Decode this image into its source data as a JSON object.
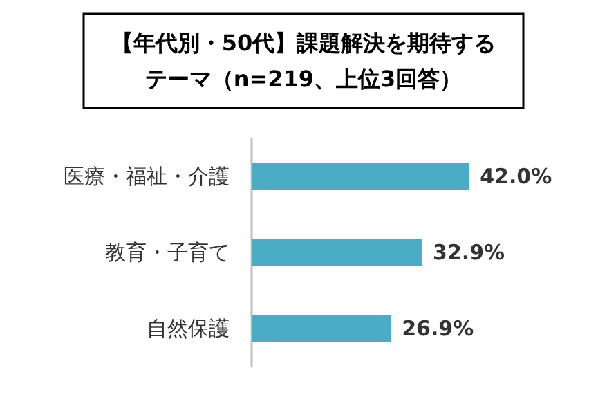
{
  "chart_data": {
    "type": "bar",
    "orientation": "horizontal",
    "title": "【年代別・50代】課題解決を期待するテーマ（n=219、上位3回答）",
    "categories": [
      "医療・福祉・介護",
      "教育・子育て",
      "自然保護"
    ],
    "values": [
      42.0,
      32.9,
      26.9
    ],
    "color": "#4bacc6",
    "value_labels": [
      "42.0%",
      "32.9%",
      "26.9%"
    ]
  }
}
